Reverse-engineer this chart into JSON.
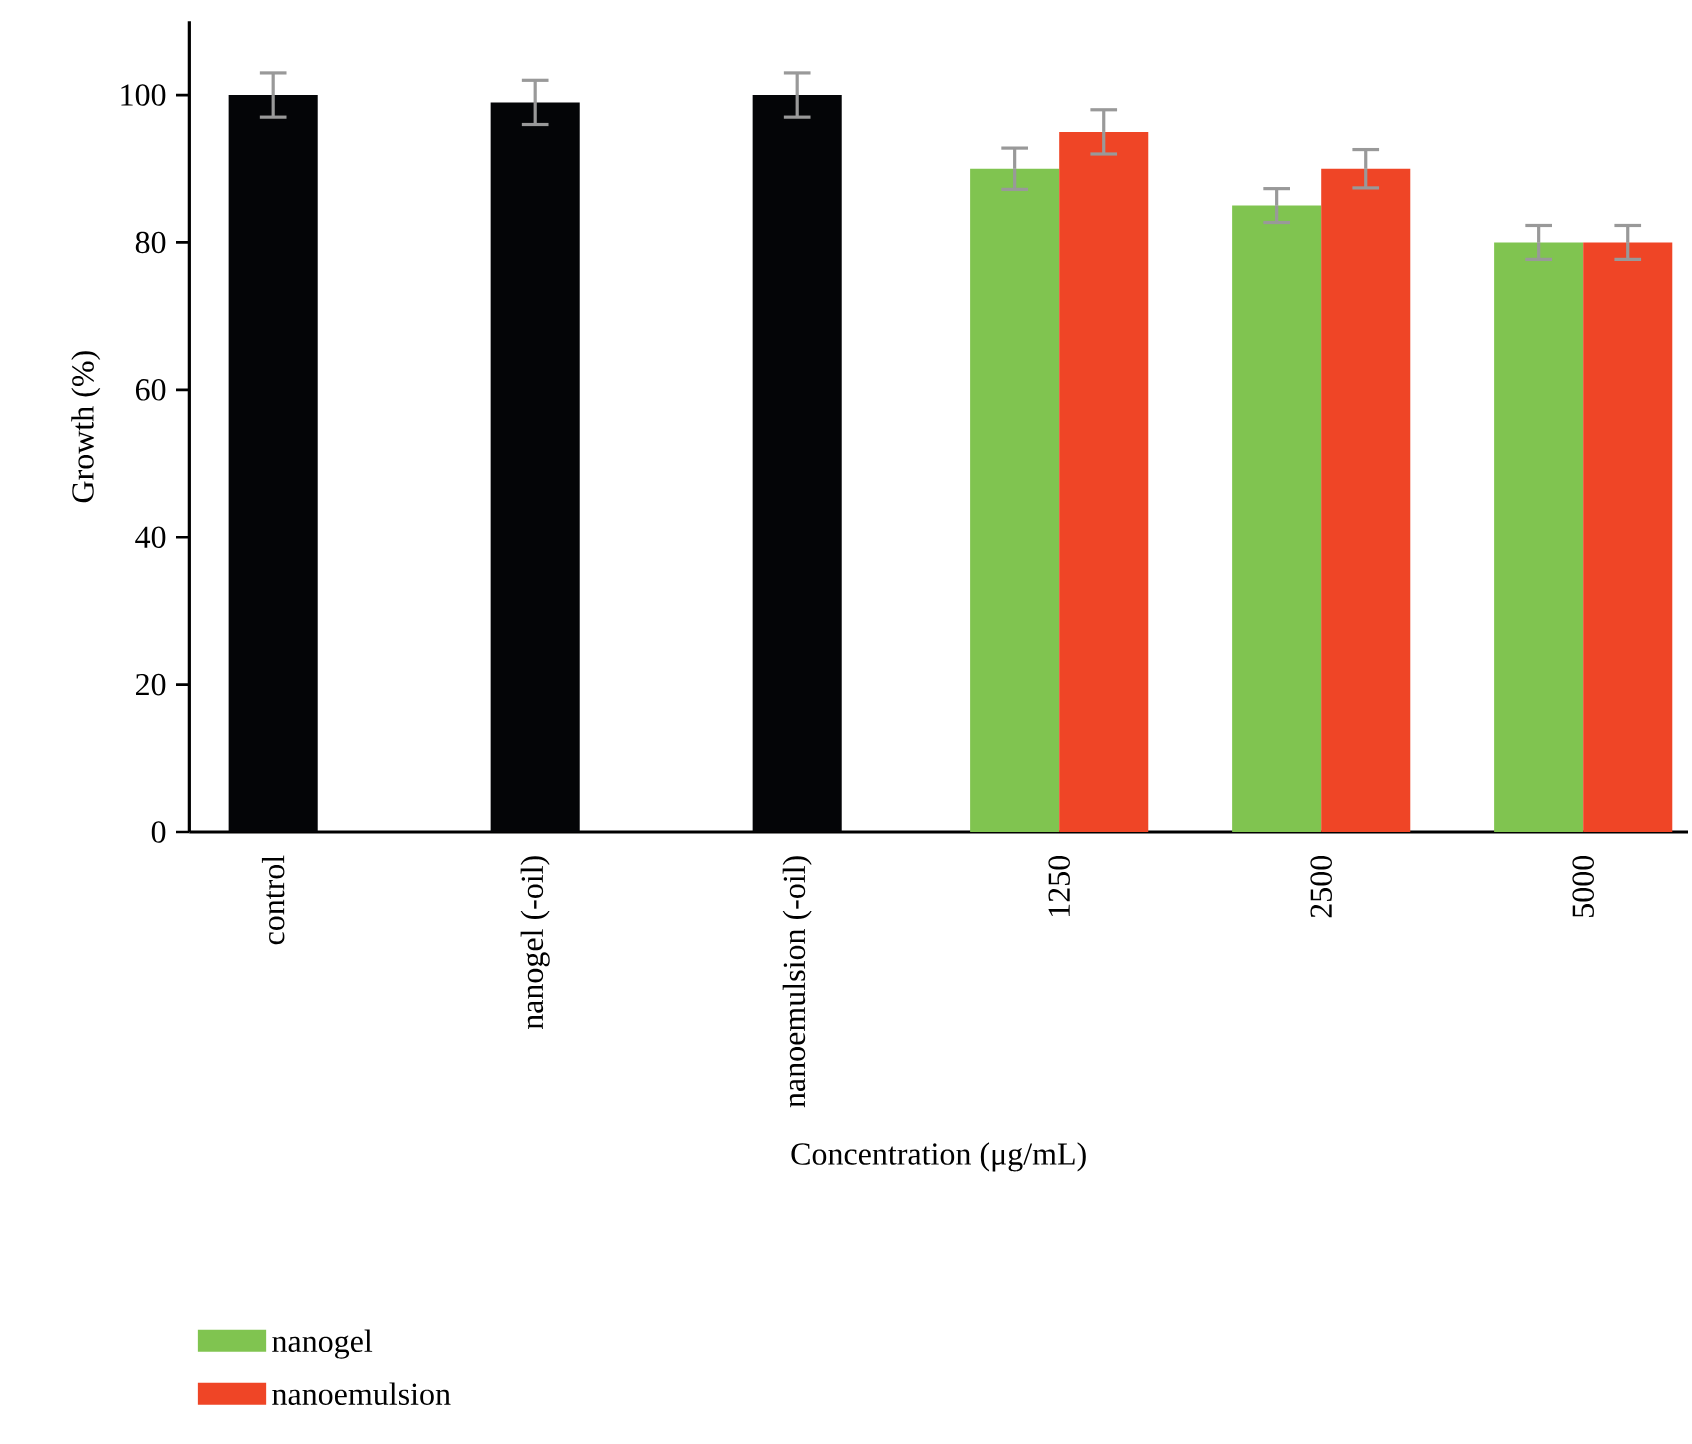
{
  "chart_data": {
    "type": "bar",
    "ylabel": "Growth (%)",
    "xlabel": "Concentration (μg/mL)",
    "categories": [
      "control",
      "nanogel (-oil)",
      "nanoemulsion (-oil)",
      "1250",
      "2500",
      "5000"
    ],
    "series": [
      {
        "color": "#040507",
        "values": [
          100,
          99,
          100,
          null,
          null,
          null
        ],
        "errors": [
          3,
          3,
          3,
          null,
          null,
          null
        ]
      },
      {
        "name": "nanogel",
        "color": "#80c450",
        "values": [
          null,
          null,
          null,
          90,
          85,
          80
        ],
        "errors": [
          null,
          null,
          null,
          2.8,
          2.3,
          2.3
        ]
      },
      {
        "name": "nanoemulsion",
        "color": "#ef4526",
        "values": [
          null,
          null,
          null,
          95,
          90,
          80
        ],
        "errors": [
          null,
          null,
          null,
          3,
          2.6,
          2.3
        ]
      }
    ],
    "ylim": [
      0,
      110
    ],
    "yticks": [
      0,
      20,
      40,
      60,
      80,
      100
    ],
    "grid": false,
    "legend": "bottom left"
  }
}
